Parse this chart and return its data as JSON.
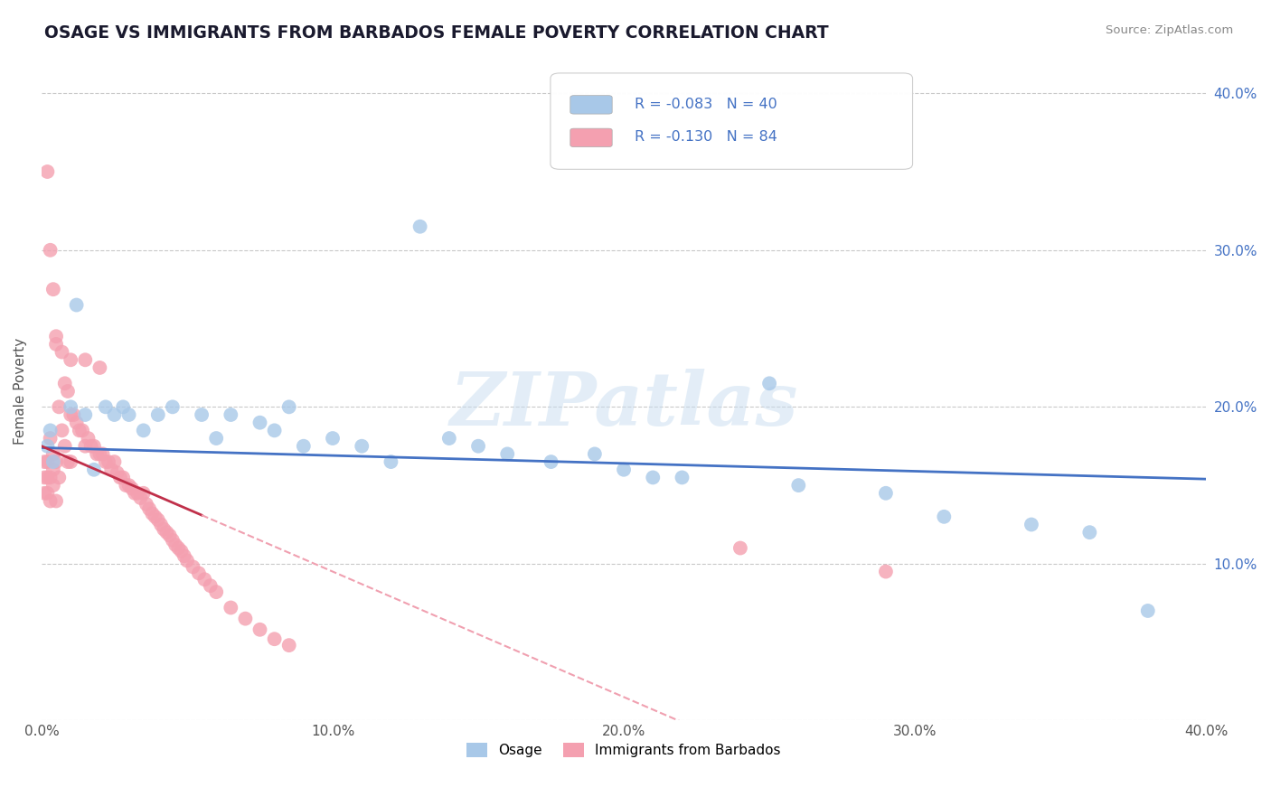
{
  "title": "OSAGE VS IMMIGRANTS FROM BARBADOS FEMALE POVERTY CORRELATION CHART",
  "source": "Source: ZipAtlas.com",
  "xlabel": "",
  "ylabel": "Female Poverty",
  "xmin": 0.0,
  "xmax": 0.4,
  "ymin": 0.0,
  "ymax": 0.42,
  "ytick_labels": [
    "",
    "10.0%",
    "20.0%",
    "30.0%",
    "40.0%"
  ],
  "ytick_vals": [
    0.0,
    0.1,
    0.2,
    0.3,
    0.4
  ],
  "xtick_labels": [
    "0.0%",
    "",
    "10.0%",
    "",
    "20.0%",
    "",
    "30.0%",
    "",
    "40.0%"
  ],
  "xtick_vals": [
    0.0,
    0.05,
    0.1,
    0.15,
    0.2,
    0.25,
    0.3,
    0.35,
    0.4
  ],
  "osage_color": "#a8c8e8",
  "barbados_color": "#f4a0b0",
  "trend_osage_color": "#4472c4",
  "trend_barbados_color": "#c0304a",
  "trend_barbados_dash_color": "#f0a0b0",
  "background_color": "#ffffff",
  "grid_color": "#bbbbbb",
  "legend_r_osage": "-0.083",
  "legend_n_osage": "40",
  "legend_r_barbados": "-0.130",
  "legend_n_barbados": "84",
  "legend_label_osage": "Osage",
  "legend_label_barbados": "Immigrants from Barbados",
  "watermark": "ZIPatlas",
  "osage_x": [
    0.002,
    0.003,
    0.004,
    0.01,
    0.012,
    0.015,
    0.018,
    0.022,
    0.025,
    0.028,
    0.03,
    0.035,
    0.04,
    0.045,
    0.055,
    0.06,
    0.065,
    0.075,
    0.08,
    0.085,
    0.09,
    0.1,
    0.11,
    0.12,
    0.13,
    0.14,
    0.15,
    0.16,
    0.175,
    0.19,
    0.2,
    0.21,
    0.22,
    0.25,
    0.26,
    0.29,
    0.31,
    0.34,
    0.36,
    0.38
  ],
  "osage_y": [
    0.175,
    0.185,
    0.165,
    0.2,
    0.265,
    0.195,
    0.16,
    0.2,
    0.195,
    0.2,
    0.195,
    0.185,
    0.195,
    0.2,
    0.195,
    0.18,
    0.195,
    0.19,
    0.185,
    0.2,
    0.175,
    0.18,
    0.175,
    0.165,
    0.315,
    0.18,
    0.175,
    0.17,
    0.165,
    0.17,
    0.16,
    0.155,
    0.155,
    0.215,
    0.15,
    0.145,
    0.13,
    0.125,
    0.12,
    0.07
  ],
  "barbados_x": [
    0.001,
    0.001,
    0.001,
    0.002,
    0.002,
    0.002,
    0.003,
    0.003,
    0.003,
    0.004,
    0.004,
    0.004,
    0.005,
    0.005,
    0.005,
    0.006,
    0.006,
    0.007,
    0.007,
    0.008,
    0.008,
    0.009,
    0.009,
    0.01,
    0.01,
    0.01,
    0.011,
    0.012,
    0.013,
    0.014,
    0.015,
    0.015,
    0.016,
    0.017,
    0.018,
    0.019,
    0.02,
    0.02,
    0.021,
    0.022,
    0.023,
    0.024,
    0.025,
    0.026,
    0.027,
    0.028,
    0.029,
    0.03,
    0.031,
    0.032,
    0.033,
    0.034,
    0.035,
    0.036,
    0.037,
    0.038,
    0.039,
    0.04,
    0.041,
    0.042,
    0.043,
    0.044,
    0.045,
    0.046,
    0.047,
    0.048,
    0.049,
    0.05,
    0.052,
    0.054,
    0.056,
    0.058,
    0.06,
    0.065,
    0.07,
    0.075,
    0.08,
    0.085,
    0.24,
    0.29,
    0.002,
    0.003,
    0.004,
    0.005
  ],
  "barbados_y": [
    0.155,
    0.165,
    0.145,
    0.165,
    0.155,
    0.145,
    0.18,
    0.155,
    0.14,
    0.17,
    0.16,
    0.15,
    0.245,
    0.165,
    0.14,
    0.2,
    0.155,
    0.235,
    0.185,
    0.215,
    0.175,
    0.21,
    0.165,
    0.23,
    0.195,
    0.165,
    0.195,
    0.19,
    0.185,
    0.185,
    0.23,
    0.175,
    0.18,
    0.175,
    0.175,
    0.17,
    0.225,
    0.17,
    0.17,
    0.165,
    0.165,
    0.16,
    0.165,
    0.158,
    0.155,
    0.155,
    0.15,
    0.15,
    0.148,
    0.145,
    0.145,
    0.142,
    0.145,
    0.138,
    0.135,
    0.132,
    0.13,
    0.128,
    0.125,
    0.122,
    0.12,
    0.118,
    0.115,
    0.112,
    0.11,
    0.108,
    0.105,
    0.102,
    0.098,
    0.094,
    0.09,
    0.086,
    0.082,
    0.072,
    0.065,
    0.058,
    0.052,
    0.048,
    0.11,
    0.095,
    0.35,
    0.3,
    0.275,
    0.24
  ]
}
